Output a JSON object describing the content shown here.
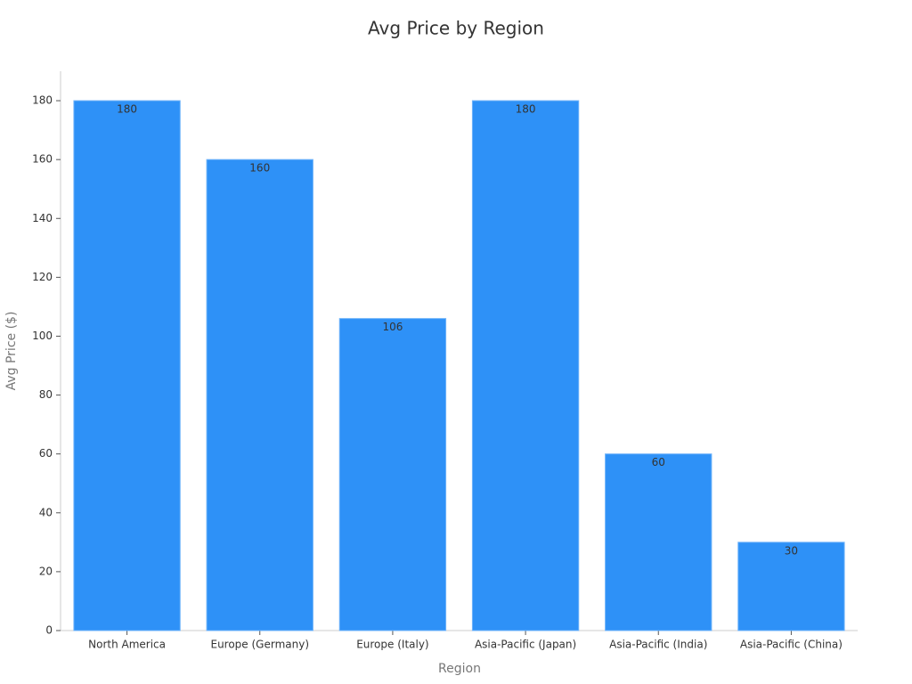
{
  "chart_data": {
    "type": "bar",
    "title": "Avg Price by Region",
    "x_label": "Region",
    "y_label": "Avg Price ($)",
    "categories": [
      "North America",
      "Europe (Germany)",
      "Europe (Italy)",
      "Asia-Pacific (Japan)",
      "Asia-Pacific (India)",
      "Asia-Pacific (China)"
    ],
    "values": [
      180,
      160,
      106,
      180,
      60,
      30
    ],
    "color": "#2e91f7",
    "ylim": [
      0,
      190
    ],
    "yticks": [
      0,
      20,
      40,
      60,
      80,
      100,
      120,
      140,
      160,
      180
    ],
    "grid": false,
    "value_labels_shown": true
  }
}
